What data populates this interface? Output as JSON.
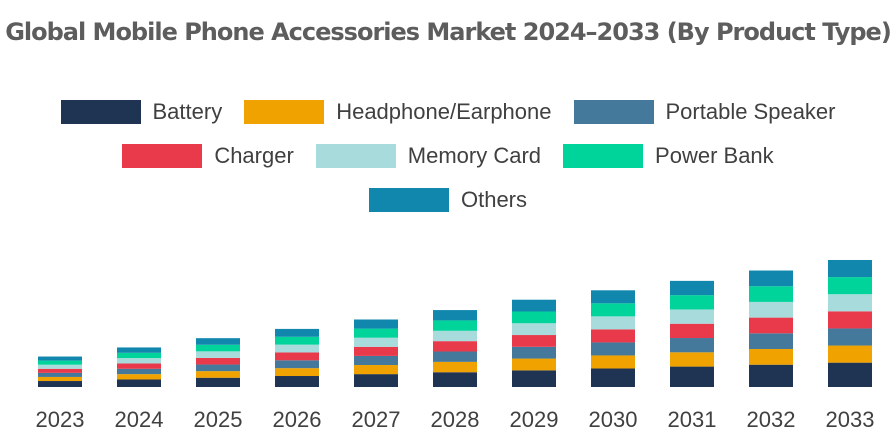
{
  "chart_data": {
    "type": "bar",
    "stacked": true,
    "title": "Global Mobile Phone Accessories Market 2024–2033 (By Product Type)",
    "categories": [
      "2023",
      "2024",
      "2025",
      "2026",
      "2027",
      "2028",
      "2029",
      "2030",
      "2031",
      "2032",
      "2033"
    ],
    "legend_position": "top",
    "grid": false,
    "y_axis_visible": false,
    "ylim": [
      0,
      1
    ],
    "series": [
      {
        "name": "Battery",
        "color": "#1f3352",
        "values": [
          0.038,
          0.048,
          0.059,
          0.07,
          0.082,
          0.094,
          0.106,
          0.118,
          0.13,
          0.142,
          0.155
        ]
      },
      {
        "name": "Headphone/Earphone",
        "color": "#f0a300",
        "values": [
          0.026,
          0.034,
          0.042,
          0.05,
          0.058,
          0.066,
          0.075,
          0.083,
          0.091,
          0.1,
          0.109
        ]
      },
      {
        "name": "Portable Speaker",
        "color": "#44799c",
        "values": [
          0.026,
          0.034,
          0.042,
          0.05,
          0.058,
          0.066,
          0.075,
          0.083,
          0.091,
          0.1,
          0.109
        ]
      },
      {
        "name": "Charger",
        "color": "#e83a4b",
        "values": [
          0.026,
          0.034,
          0.042,
          0.05,
          0.058,
          0.066,
          0.075,
          0.083,
          0.091,
          0.1,
          0.109
        ]
      },
      {
        "name": "Memory Card",
        "color": "#a8dcdc",
        "values": [
          0.026,
          0.034,
          0.042,
          0.05,
          0.058,
          0.066,
          0.075,
          0.083,
          0.091,
          0.1,
          0.109
        ]
      },
      {
        "name": "Power Bank",
        "color": "#00d49b",
        "values": [
          0.026,
          0.034,
          0.042,
          0.05,
          0.058,
          0.066,
          0.075,
          0.083,
          0.091,
          0.1,
          0.109
        ]
      },
      {
        "name": "Others",
        "color": "#1287ae",
        "values": [
          0.026,
          0.034,
          0.042,
          0.05,
          0.058,
          0.066,
          0.075,
          0.083,
          0.091,
          0.1,
          0.109
        ]
      }
    ]
  }
}
